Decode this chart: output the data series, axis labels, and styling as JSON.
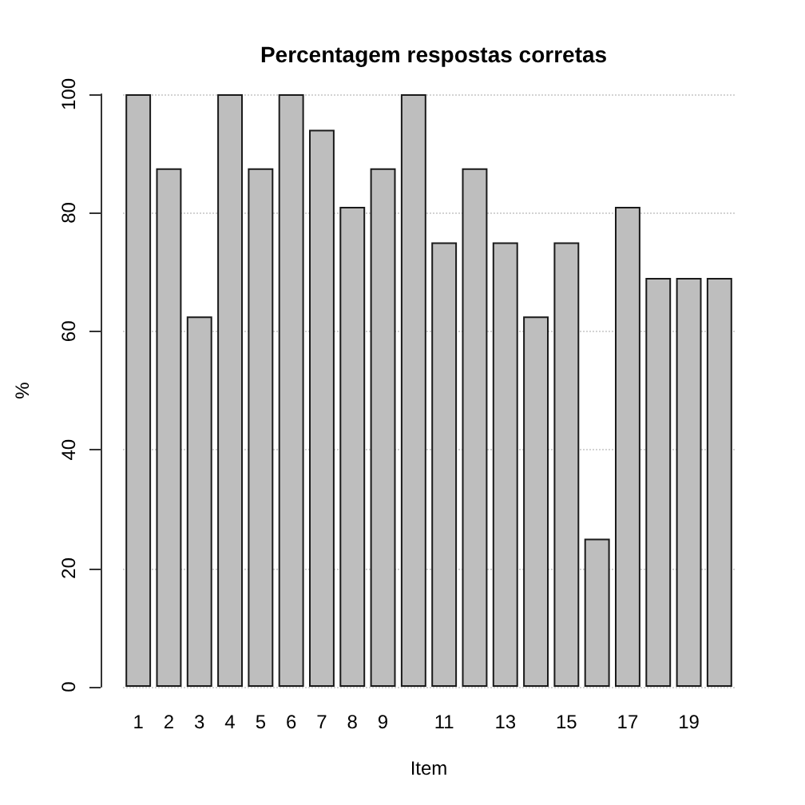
{
  "chart_data": {
    "type": "bar",
    "title": "Percentagem respostas corretas",
    "xlabel": "Item",
    "ylabel": "%",
    "categories": [
      "1",
      "2",
      "3",
      "4",
      "5",
      "6",
      "7",
      "8",
      "9",
      null,
      "11",
      null,
      "13",
      null,
      "15",
      null,
      "17",
      null,
      "19",
      null
    ],
    "values": [
      100,
      87.5,
      62.5,
      100,
      87.5,
      100,
      94,
      81,
      87.5,
      100,
      75,
      87.5,
      75,
      62.5,
      75,
      25,
      81,
      69,
      69,
      69
    ],
    "color": "#bebebe",
    "ylim": [
      0,
      100
    ],
    "yticks": [
      0,
      20,
      40,
      60,
      80,
      100
    ],
    "grid": "y"
  }
}
